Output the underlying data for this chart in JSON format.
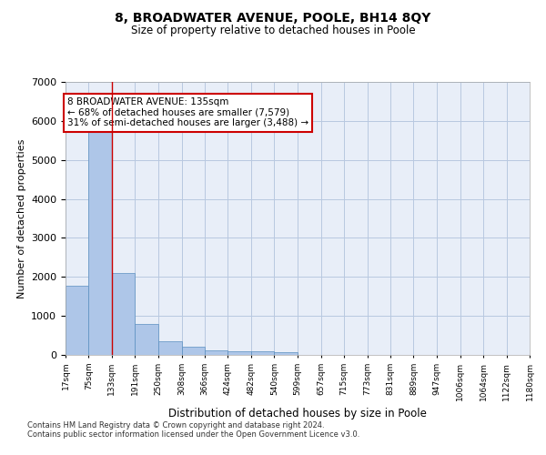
{
  "title": "8, BROADWATER AVENUE, POOLE, BH14 8QY",
  "subtitle": "Size of property relative to detached houses in Poole",
  "xlabel": "Distribution of detached houses by size in Poole",
  "ylabel": "Number of detached properties",
  "bin_edges": [
    17,
    75,
    133,
    191,
    250,
    308,
    366,
    424,
    482,
    540,
    599,
    657,
    715,
    773,
    831,
    889,
    947,
    1006,
    1064,
    1122,
    1180
  ],
  "bar_heights": [
    1780,
    5800,
    2090,
    800,
    350,
    200,
    120,
    100,
    90,
    75,
    0,
    0,
    0,
    0,
    0,
    0,
    0,
    0,
    0,
    0
  ],
  "bar_color": "#aec6e8",
  "bar_edge_color": "#5a8fc0",
  "property_line_x": 133,
  "property_line_color": "#cc0000",
  "ylim": [
    0,
    7000
  ],
  "annotation_text": "8 BROADWATER AVENUE: 135sqm\n← 68% of detached houses are smaller (7,579)\n31% of semi-detached houses are larger (3,488) →",
  "annotation_box_color": "#cc0000",
  "footnote1": "Contains HM Land Registry data © Crown copyright and database right 2024.",
  "footnote2": "Contains public sector information licensed under the Open Government Licence v3.0.",
  "background_color": "#e8eef8",
  "tick_labels": [
    "17sqm",
    "75sqm",
    "133sqm",
    "191sqm",
    "250sqm",
    "308sqm",
    "366sqm",
    "424sqm",
    "482sqm",
    "540sqm",
    "599sqm",
    "657sqm",
    "715sqm",
    "773sqm",
    "831sqm",
    "889sqm",
    "947sqm",
    "1006sqm",
    "1064sqm",
    "1122sqm",
    "1180sqm"
  ]
}
